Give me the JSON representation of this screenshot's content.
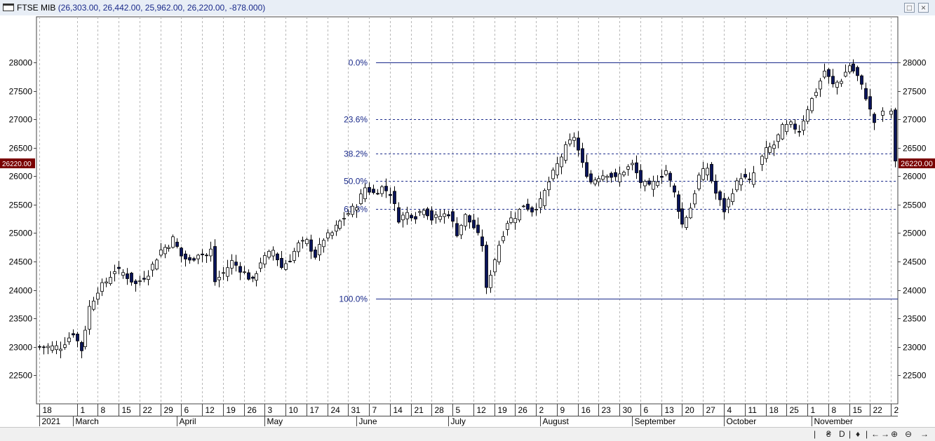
{
  "window": {
    "title": "FTSE MIB",
    "values": "(26,303.00, 26,442.00, 25,962.00, 26,220.00, -878.000)"
  },
  "statusbar": {
    "controls": [
      "|",
      "₴",
      "D",
      "|",
      "♦",
      "|",
      "←",
      "→",
      "⊕",
      "⊖",
      "→"
    ]
  },
  "chart_data": {
    "type": "candlestick",
    "title": "FTSE MIB",
    "ylim": [
      22000,
      28800
    ],
    "yticks": [
      22500,
      23000,
      23500,
      24000,
      24500,
      25000,
      25500,
      26000,
      26500,
      27000,
      27500,
      28000
    ],
    "last_price_label": "26220.00",
    "last_price": 26220,
    "x_ticks": [
      "18",
      "1",
      "8",
      "15",
      "22",
      "29",
      "6",
      "12",
      "19",
      "26",
      "3",
      "10",
      "17",
      "24",
      "31",
      "7",
      "14",
      "21",
      "28",
      "5",
      "12",
      "19",
      "26",
      "2",
      "9",
      "16",
      "23",
      "30",
      "6",
      "13",
      "20",
      "27",
      "4",
      "11",
      "18",
      "25",
      "1",
      "8",
      "15",
      "22",
      "2"
    ],
    "x_tick_index": [
      0,
      9,
      14,
      19,
      24,
      29,
      34,
      39,
      44,
      49,
      54,
      59,
      64,
      69,
      74,
      79,
      84,
      89,
      94,
      99,
      104,
      109,
      114,
      119,
      124,
      129,
      134,
      139,
      144,
      149,
      154,
      159,
      164,
      169,
      174,
      179,
      184,
      189,
      194,
      199,
      204
    ],
    "months": [
      {
        "label": "2021",
        "index": 0
      },
      {
        "label": "March",
        "index": 8
      },
      {
        "label": "April",
        "index": 33
      },
      {
        "label": "May",
        "index": 54
      },
      {
        "label": "June",
        "index": 76
      },
      {
        "label": "July",
        "index": 98
      },
      {
        "label": "August",
        "index": 120
      },
      {
        "label": "September",
        "index": 142
      },
      {
        "label": "October",
        "index": 164
      },
      {
        "label": "November",
        "index": 185
      }
    ],
    "fib_levels": [
      {
        "label": "0.0%",
        "value": 28000,
        "style": "solid"
      },
      {
        "label": "23.6%",
        "value": 27000,
        "style": "dashed"
      },
      {
        "label": "38.2%",
        "value": 26400,
        "style": "dashed"
      },
      {
        "label": "50.0%",
        "value": 25920,
        "style": "dashed"
      },
      {
        "label": "61.8%",
        "value": 25420,
        "style": "dashed"
      },
      {
        "label": "100.0%",
        "value": 23850,
        "style": "solid"
      }
    ],
    "fib_start_index": 80,
    "key_closes": [
      {
        "i": 0,
        "c": 23000
      },
      {
        "i": 5,
        "c": 23000
      },
      {
        "i": 8,
        "c": 23250
      },
      {
        "i": 10,
        "c": 22950
      },
      {
        "i": 12,
        "c": 23700
      },
      {
        "i": 14,
        "c": 24000
      },
      {
        "i": 16,
        "c": 24150
      },
      {
        "i": 18,
        "c": 24350
      },
      {
        "i": 20,
        "c": 24300
      },
      {
        "i": 23,
        "c": 24100
      },
      {
        "i": 26,
        "c": 24300
      },
      {
        "i": 29,
        "c": 24700
      },
      {
        "i": 31,
        "c": 24800
      },
      {
        "i": 32,
        "c": 24900
      },
      {
        "i": 34,
        "c": 24600
      },
      {
        "i": 36,
        "c": 24500
      },
      {
        "i": 38,
        "c": 24650
      },
      {
        "i": 40,
        "c": 24600
      },
      {
        "i": 41,
        "c": 24700
      },
      {
        "i": 42,
        "c": 24150
      },
      {
        "i": 44,
        "c": 24300
      },
      {
        "i": 46,
        "c": 24500
      },
      {
        "i": 49,
        "c": 24300
      },
      {
        "i": 51,
        "c": 24150
      },
      {
        "i": 53,
        "c": 24500
      },
      {
        "i": 56,
        "c": 24700
      },
      {
        "i": 58,
        "c": 24400
      },
      {
        "i": 60,
        "c": 24550
      },
      {
        "i": 62,
        "c": 24800
      },
      {
        "i": 64,
        "c": 24850
      },
      {
        "i": 66,
        "c": 24600
      },
      {
        "i": 68,
        "c": 24900
      },
      {
        "i": 70,
        "c": 25000
      },
      {
        "i": 72,
        "c": 25200
      },
      {
        "i": 74,
        "c": 25350
      },
      {
        "i": 76,
        "c": 25500
      },
      {
        "i": 78,
        "c": 25800
      },
      {
        "i": 80,
        "c": 25700
      },
      {
        "i": 82,
        "c": 25800
      },
      {
        "i": 84,
        "c": 25700
      },
      {
        "i": 86,
        "c": 25250
      },
      {
        "i": 88,
        "c": 25350
      },
      {
        "i": 90,
        "c": 25300
      },
      {
        "i": 92,
        "c": 25450
      },
      {
        "i": 94,
        "c": 25250
      },
      {
        "i": 96,
        "c": 25300
      },
      {
        "i": 98,
        "c": 25350
      },
      {
        "i": 100,
        "c": 25000
      },
      {
        "i": 102,
        "c": 25300
      },
      {
        "i": 104,
        "c": 25100
      },
      {
        "i": 106,
        "c": 24800
      },
      {
        "i": 107,
        "c": 24000
      },
      {
        "i": 108,
        "c": 24300
      },
      {
        "i": 110,
        "c": 24800
      },
      {
        "i": 112,
        "c": 25200
      },
      {
        "i": 114,
        "c": 25300
      },
      {
        "i": 116,
        "c": 25500
      },
      {
        "i": 118,
        "c": 25400
      },
      {
        "i": 120,
        "c": 25550
      },
      {
        "i": 122,
        "c": 25900
      },
      {
        "i": 124,
        "c": 26200
      },
      {
        "i": 126,
        "c": 26500
      },
      {
        "i": 128,
        "c": 26700
      },
      {
        "i": 130,
        "c": 26200
      },
      {
        "i": 132,
        "c": 25900
      },
      {
        "i": 134,
        "c": 26000
      },
      {
        "i": 136,
        "c": 26050
      },
      {
        "i": 138,
        "c": 25950
      },
      {
        "i": 140,
        "c": 26100
      },
      {
        "i": 142,
        "c": 26200
      },
      {
        "i": 144,
        "c": 25900
      },
      {
        "i": 146,
        "c": 25800
      },
      {
        "i": 148,
        "c": 25950
      },
      {
        "i": 150,
        "c": 26100
      },
      {
        "i": 152,
        "c": 25700
      },
      {
        "i": 154,
        "c": 25150
      },
      {
        "i": 156,
        "c": 25450
      },
      {
        "i": 158,
        "c": 26000
      },
      {
        "i": 160,
        "c": 26150
      },
      {
        "i": 162,
        "c": 25700
      },
      {
        "i": 164,
        "c": 25400
      },
      {
        "i": 166,
        "c": 25750
      },
      {
        "i": 168,
        "c": 26000
      },
      {
        "i": 170,
        "c": 25900
      },
      {
        "i": 172,
        "c": 26200
      },
      {
        "i": 174,
        "c": 26450
      },
      {
        "i": 176,
        "c": 26550
      },
      {
        "i": 178,
        "c": 26850
      },
      {
        "i": 180,
        "c": 26900
      },
      {
        "i": 182,
        "c": 26800
      },
      {
        "i": 184,
        "c": 27200
      },
      {
        "i": 186,
        "c": 27500
      },
      {
        "i": 188,
        "c": 27850
      },
      {
        "i": 190,
        "c": 27600
      },
      {
        "i": 192,
        "c": 27700
      },
      {
        "i": 194,
        "c": 27950
      },
      {
        "i": 196,
        "c": 27750
      },
      {
        "i": 198,
        "c": 27400
      },
      {
        "i": 199,
        "c": 27150
      },
      {
        "i": 200,
        "c": 26950
      },
      {
        "i": 202,
        "c": 27100
      },
      {
        "i": 204,
        "c": 27150
      },
      {
        "i": 205,
        "c": 26220
      }
    ],
    "grid": "vertical-dashed",
    "colors": {
      "up": "#ffffff",
      "down": "#0a145a",
      "outline": "#000000",
      "fib": "#1a2a8a",
      "last_price_bg": "#7a0000"
    }
  }
}
